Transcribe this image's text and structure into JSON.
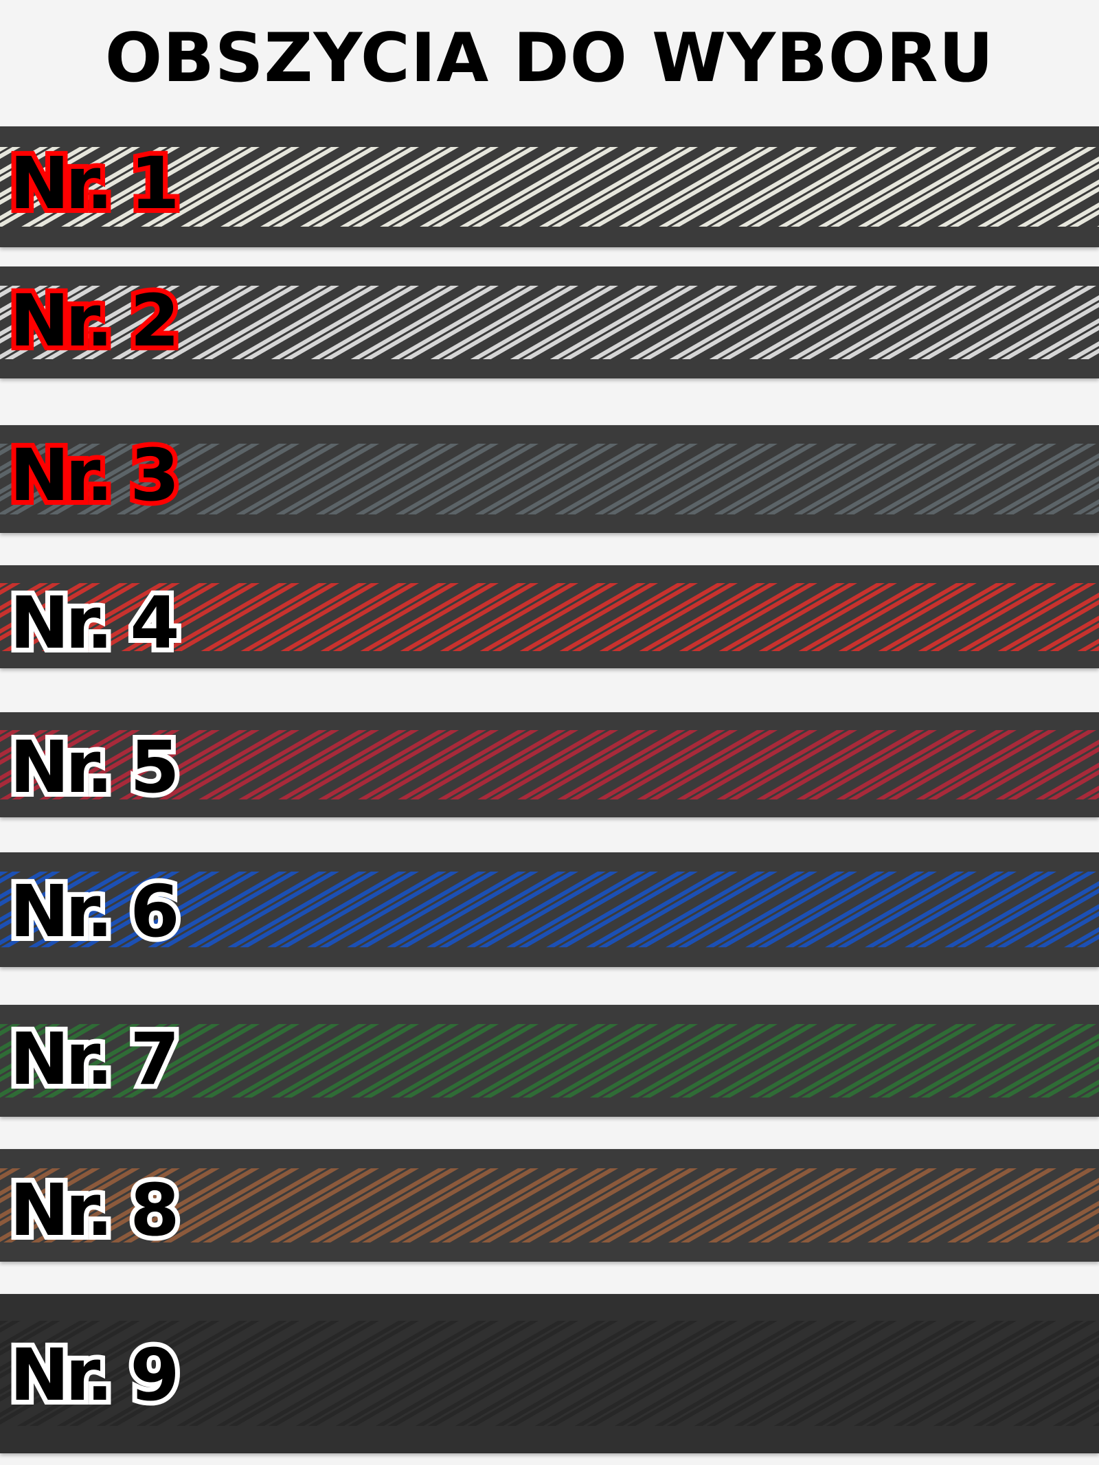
{
  "title": "OBSZYCIA DO WYBORU",
  "options": [
    {
      "label": "Nr. 1",
      "stripe_color": "#e6e6dc",
      "label_outline": "#ff0000"
    },
    {
      "label": "Nr. 2",
      "stripe_color": "#d6d6d6",
      "label_outline": "#ff0000"
    },
    {
      "label": "Nr. 3",
      "stripe_color": "#5c6468",
      "label_outline": "#ff0000"
    },
    {
      "label": "Nr. 4",
      "stripe_color": "#c8322e",
      "label_outline": "#ffffff"
    },
    {
      "label": "Nr. 5",
      "stripe_color": "#a82a3a",
      "label_outline": "#ffffff"
    },
    {
      "label": "Nr. 6",
      "stripe_color": "#1c50b4",
      "label_outline": "#ffffff"
    },
    {
      "label": "Nr. 7",
      "stripe_color": "#2f6c36",
      "label_outline": "#ffffff"
    },
    {
      "label": "Nr. 8",
      "stripe_color": "#8c5a3c",
      "label_outline": "#ffffff"
    },
    {
      "label": "Nr. 9",
      "stripe_color": "#262626",
      "label_outline": "#ffffff"
    }
  ]
}
